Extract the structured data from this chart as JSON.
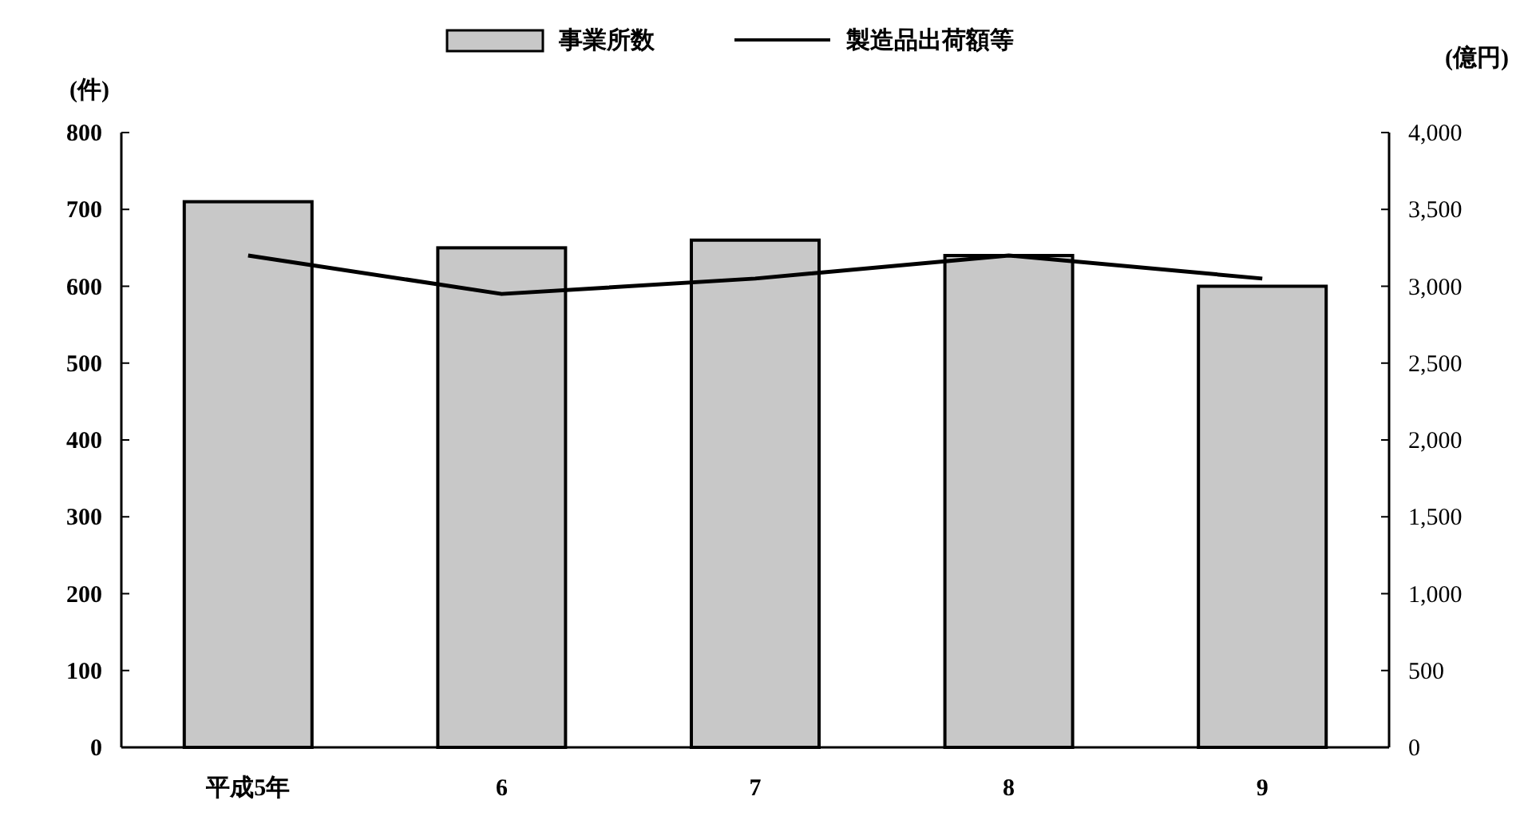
{
  "chart_data": {
    "type": "bar",
    "categories": [
      "平成5年",
      "6",
      "7",
      "8",
      "9"
    ],
    "series": [
      {
        "name": "事業所数",
        "color": "#c8c8c8",
        "values": [
          710,
          650,
          660,
          640,
          600
        ]
      },
      {
        "name": "製造品出荷額等",
        "type": "line",
        "axis": "y2",
        "color": "#000000",
        "values": [
          3200,
          2950,
          3050,
          3200,
          3050
        ]
      }
    ],
    "ylabel": "(件)",
    "y2label": "(億円)",
    "ylim": [
      0,
      800
    ],
    "yticks": [
      0,
      100,
      200,
      300,
      400,
      500,
      600,
      700,
      800
    ],
    "y2lim": [
      0,
      4000
    ],
    "y2ticks": [
      0,
      500,
      {
        "value": 1000,
        "label": "1,000"
      },
      {
        "value": 1500,
        "label": "1,500"
      },
      {
        "value": 2000,
        "label": "2,000"
      },
      {
        "value": 2500,
        "label": "2,500"
      },
      {
        "value": 3000,
        "label": "3,000"
      },
      {
        "value": 3500,
        "label": "3,500"
      },
      {
        "value": 4000,
        "label": "4,000"
      }
    ],
    "legend": "top"
  }
}
